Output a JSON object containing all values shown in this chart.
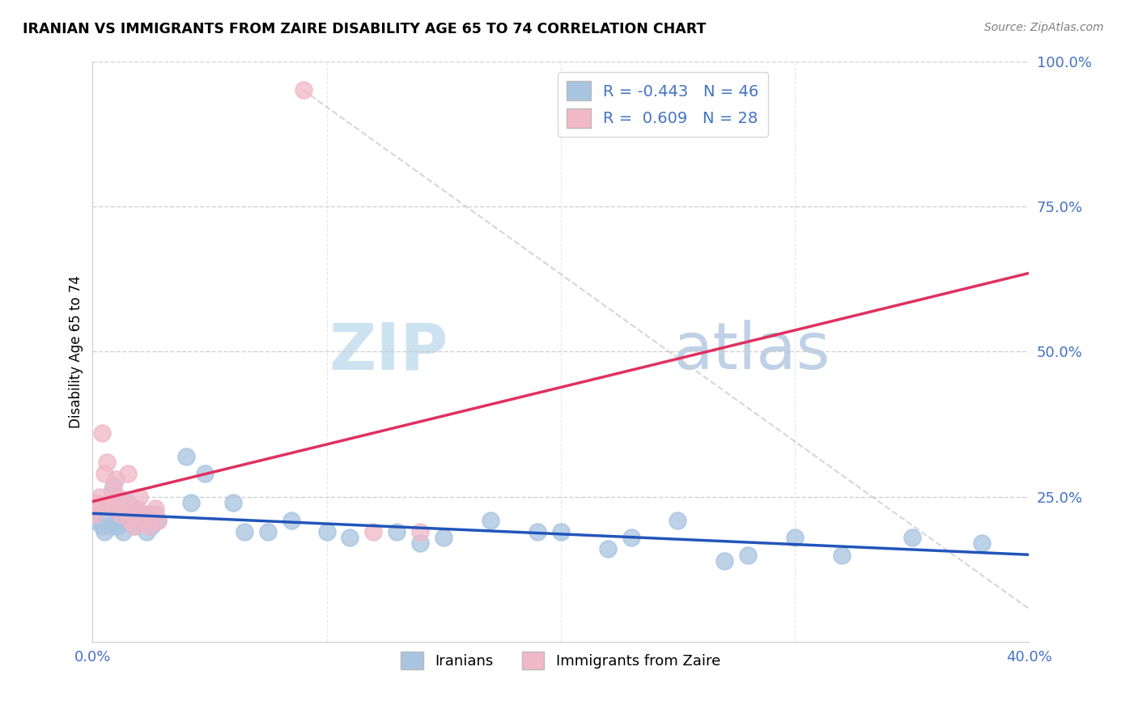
{
  "title": "IRANIAN VS IMMIGRANTS FROM ZAIRE DISABILITY AGE 65 TO 74 CORRELATION CHART",
  "source": "Source: ZipAtlas.com",
  "ylabel": "Disability Age 65 to 74",
  "xlim": [
    0.0,
    0.4
  ],
  "ylim": [
    0.0,
    1.0
  ],
  "iranians_R": -0.443,
  "iranians_N": 46,
  "zaire_R": 0.609,
  "zaire_N": 28,
  "iranians_color": "#a8c4e0",
  "zaire_color": "#f0b8c8",
  "iranians_line_color": "#2255bb",
  "zaire_line_color": "#e03060",
  "iranians_x": [
    0.0,
    0.002,
    0.004,
    0.005,
    0.006,
    0.008,
    0.009,
    0.01,
    0.011,
    0.012,
    0.013,
    0.015,
    0.016,
    0.017,
    0.018,
    0.019,
    0.02,
    0.022,
    0.023,
    0.025,
    0.027,
    0.028,
    0.04,
    0.042,
    0.048,
    0.06,
    0.065,
    0.075,
    0.085,
    0.1,
    0.11,
    0.13,
    0.14,
    0.15,
    0.17,
    0.19,
    0.2,
    0.22,
    0.23,
    0.25,
    0.27,
    0.28,
    0.3,
    0.32,
    0.35,
    0.38
  ],
  "iranians_y": [
    0.21,
    0.23,
    0.2,
    0.19,
    0.22,
    0.2,
    0.27,
    0.22,
    0.2,
    0.21,
    0.19,
    0.24,
    0.21,
    0.23,
    0.2,
    0.22,
    0.21,
    0.22,
    0.19,
    0.2,
    0.22,
    0.21,
    0.32,
    0.24,
    0.29,
    0.24,
    0.19,
    0.19,
    0.21,
    0.19,
    0.18,
    0.19,
    0.17,
    0.18,
    0.21,
    0.19,
    0.19,
    0.16,
    0.18,
    0.21,
    0.14,
    0.15,
    0.18,
    0.15,
    0.18,
    0.17
  ],
  "zaire_x": [
    0.0,
    0.001,
    0.002,
    0.003,
    0.004,
    0.005,
    0.006,
    0.007,
    0.008,
    0.009,
    0.01,
    0.011,
    0.012,
    0.013,
    0.015,
    0.016,
    0.017,
    0.018,
    0.019,
    0.02,
    0.022,
    0.024,
    0.025,
    0.027,
    0.028,
    0.09,
    0.12,
    0.14
  ],
  "zaire_y": [
    0.24,
    0.22,
    0.24,
    0.25,
    0.36,
    0.29,
    0.31,
    0.24,
    0.26,
    0.23,
    0.28,
    0.25,
    0.22,
    0.24,
    0.29,
    0.21,
    0.23,
    0.2,
    0.23,
    0.25,
    0.21,
    0.2,
    0.22,
    0.23,
    0.21,
    0.95,
    0.19,
    0.19
  ],
  "watermark_zip": "ZIP",
  "watermark_atlas": "atlas"
}
